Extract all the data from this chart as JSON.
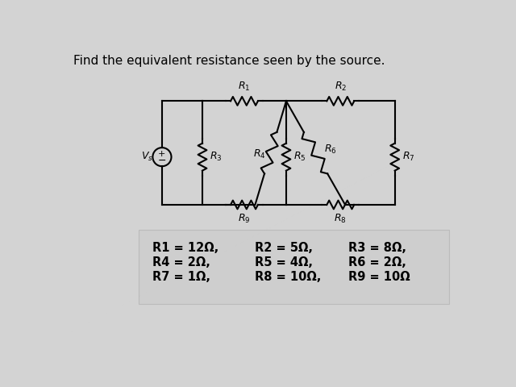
{
  "title": "Find the equivalent resistance seen by the source.",
  "bg_color": "#d3d3d3",
  "line_color": "#000000",
  "line_width": 1.5,
  "params_col1": [
    "R1 = 12Ω,",
    "R4 = 2Ω,",
    "R7 = 1Ω,"
  ],
  "params_col2": [
    "R2 = 5Ω,",
    "R5 = 4Ω,",
    "R8 = 10Ω,"
  ],
  "params_col3": [
    "R3 = 8Ω,",
    "R6 = 2Ω,",
    "R9 = 10Ω"
  ]
}
